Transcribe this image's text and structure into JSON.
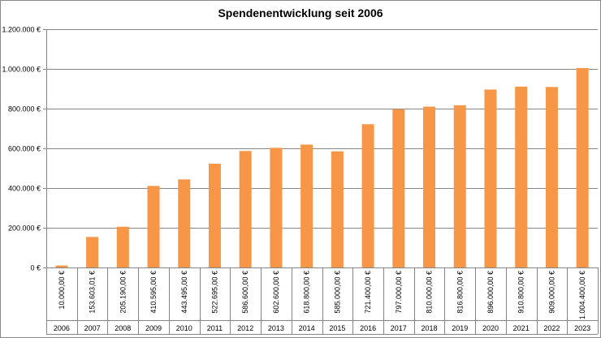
{
  "chart_data": {
    "type": "bar",
    "title": "Spendenentwicklung seit 2006",
    "xlabel": "",
    "ylabel": "",
    "ylim": [
      0,
      1200000
    ],
    "yticks": [
      0,
      200000,
      400000,
      600000,
      800000,
      1000000,
      1200000
    ],
    "ytick_labels": [
      "0 €",
      "200.000 €",
      "400.000 €",
      "600.000 €",
      "800.000 €",
      "1.000.000 €",
      "1.200.000 €"
    ],
    "grid": true,
    "legend": "none",
    "bar_color": "#F79646",
    "categories": [
      "2006",
      "2007",
      "2008",
      "2009",
      "2010",
      "2011",
      "2012",
      "2013",
      "2014",
      "2015",
      "2016",
      "2017",
      "2018",
      "2019",
      "2020",
      "2021",
      "2022",
      "2023"
    ],
    "values": [
      10000,
      153603.01,
      205190,
      410595,
      443495,
      522695,
      586600,
      602600,
      618800,
      585000,
      721400,
      797000,
      810000,
      816800,
      896000,
      910800,
      909000,
      1004400
    ],
    "value_labels": [
      "10.000,00 €",
      "153.603,01 €",
      "205.190,00 €",
      "410.595,00 €",
      "443.495,00 €",
      "522.695,00 €",
      "586.600,00 €",
      "602.600,00 €",
      "618.800,00 €",
      "585.000,00 €",
      "721.400,00 €",
      "797.000,00 €",
      "810.000,00 €",
      "816.800,00 €",
      "896.000,00 €",
      "910.800,00 €",
      "909.000,00 €",
      "1.004.400,00 €"
    ]
  }
}
